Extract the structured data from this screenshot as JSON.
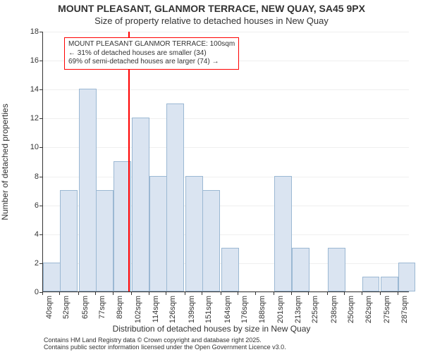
{
  "title_main": "MOUNT PLEASANT, GLANMOR TERRACE, NEW QUAY, SA45 9PX",
  "title_sub": "Size of property relative to detached houses in New Quay",
  "x_axis_label": "Distribution of detached houses by size in New Quay",
  "y_axis_label": "Number of detached properties",
  "footnote_line1": "Contains HM Land Registry data © Crown copyright and database right 2025.",
  "footnote_line2": "Contains public sector information licensed under the Open Government Licence v3.0.",
  "histogram": {
    "type": "histogram",
    "background_color": "#ffffff",
    "bar_fill": "#dae4f1",
    "bar_stroke": "#9bb8d3",
    "grid_color": "rgba(51,51,51,0.08)",
    "axis_color": "#333333",
    "refline_color": "#ff0000",
    "refline_x": 100,
    "ylim": [
      0,
      18
    ],
    "ytick_step": 2,
    "xlim": [
      40,
      295
    ],
    "xticks": [
      40,
      52,
      65,
      77,
      89,
      102,
      114,
      126,
      139,
      151,
      164,
      176,
      188,
      201,
      213,
      225,
      238,
      250,
      262,
      275,
      287
    ],
    "xtick_suffix": "sqm",
    "bin_width": 12.15,
    "bars": [
      {
        "x0": 40,
        "h": 2
      },
      {
        "x0": 52,
        "h": 7
      },
      {
        "x0": 65,
        "h": 14
      },
      {
        "x0": 77,
        "h": 7
      },
      {
        "x0": 89,
        "h": 9
      },
      {
        "x0": 102,
        "h": 12
      },
      {
        "x0": 114,
        "h": 8
      },
      {
        "x0": 126,
        "h": 13
      },
      {
        "x0": 139,
        "h": 8
      },
      {
        "x0": 151,
        "h": 7
      },
      {
        "x0": 164,
        "h": 3
      },
      {
        "x0": 176,
        "h": 0
      },
      {
        "x0": 188,
        "h": 0
      },
      {
        "x0": 201,
        "h": 8
      },
      {
        "x0": 213,
        "h": 3
      },
      {
        "x0": 225,
        "h": 0
      },
      {
        "x0": 238,
        "h": 3
      },
      {
        "x0": 250,
        "h": 0
      },
      {
        "x0": 262,
        "h": 1
      },
      {
        "x0": 275,
        "h": 1
      },
      {
        "x0": 287,
        "h": 2
      }
    ],
    "label_fontsize": 12,
    "tick_fontsize": 11,
    "title_fontsize": 14
  },
  "info_box": {
    "line1": "MOUNT PLEASANT GLANMOR TERRACE: 100sqm",
    "line2": "← 31% of detached houses are smaller (34)",
    "line3": "69% of semi-detached houses are larger (74) →",
    "border_color": "#ff0000",
    "background_color": "#ffffff",
    "fontsize": 10
  }
}
